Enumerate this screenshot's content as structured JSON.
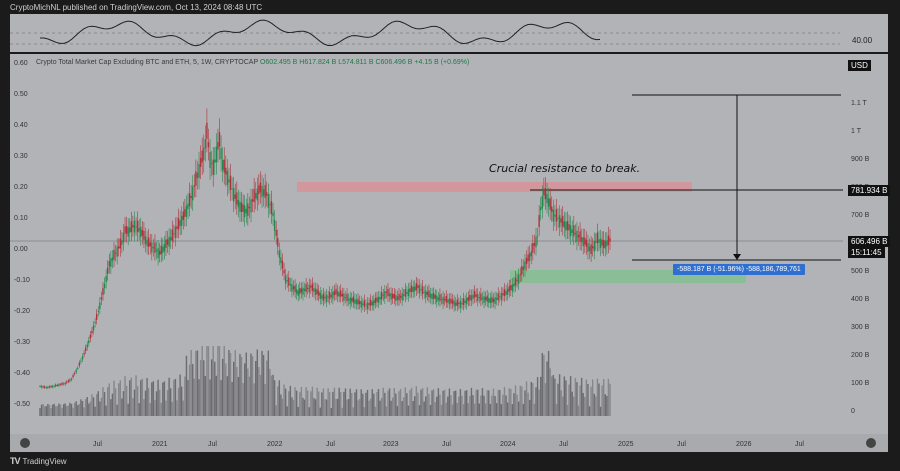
{
  "header": {
    "publisher": "CryptoMichNL published on TradingView.com, Oct 13, 2024 08:48 UTC"
  },
  "legend": {
    "title": "Crypto Total Market Cap Excluding BTC and ETH, 5, 1W, CRYPTOCAP",
    "o": "O602.495 B",
    "h": "H617.824 B",
    "l": "L574.811 B",
    "c": "C606.496 B",
    "change": "+4.15 B (+0.69%)"
  },
  "currency_label": "USD",
  "rsi_label": "40.00",
  "price_tags": {
    "resistance": "781.934 B",
    "current": "606.496 B",
    "countdown": "15:11:45"
  },
  "measure_label": "-588.187 B (-51.96%) -588,186,789,761",
  "annotation": "Crucial resistance to break.",
  "footer": {
    "brand": "TradingView"
  },
  "colors": {
    "up": "#1f8a4c",
    "down": "#b0303a",
    "resistance_zone": "#d98e96",
    "support_zone": "#7fc08f",
    "measure": "#2f6fd0"
  },
  "chart_data": {
    "type": "candlestick",
    "title": "Crypto Total Market Cap Excluding BTC and ETH, 5, 1W, CRYPTOCAP",
    "left_axis_ticks": [
      "0.60",
      "0.50",
      "0.40",
      "0.30",
      "0.20",
      "0.10",
      "0.00",
      "-0.10",
      "-0.20",
      "-0.30",
      "-0.40",
      "-0.50"
    ],
    "right_axis_ticks": [
      "1.1 T",
      "1 T",
      "900 B",
      "800 B",
      "700 B",
      "600 B",
      "500 B",
      "400 B",
      "300 B",
      "200 B",
      "100 B",
      "0"
    ],
    "x_ticks": [
      "Jul",
      "2021",
      "Jul",
      "2022",
      "Jul",
      "2023",
      "Jul",
      "2024",
      "Jul",
      "2025",
      "Jul",
      "2026",
      "Jul"
    ],
    "series": [
      {
        "points": [
          [
            0,
            85
          ],
          [
            4,
            80
          ],
          [
            8,
            84
          ],
          [
            12,
            90
          ],
          [
            16,
            95
          ],
          [
            20,
            110
          ],
          [
            24,
            150
          ],
          [
            28,
            200
          ],
          [
            32,
            260
          ],
          [
            36,
            330
          ],
          [
            40,
            420
          ],
          [
            44,
            520
          ],
          [
            48,
            560
          ],
          [
            52,
            600
          ],
          [
            54,
            640
          ],
          [
            56,
            640
          ],
          [
            60,
            660
          ],
          [
            64,
            640
          ],
          [
            68,
            600
          ],
          [
            72,
            580
          ],
          [
            76,
            560
          ],
          [
            80,
            590
          ],
          [
            84,
            620
          ],
          [
            88,
            660
          ],
          [
            92,
            700
          ],
          [
            96,
            760
          ],
          [
            100,
            840
          ],
          [
            104,
            920
          ],
          [
            106,
            990
          ],
          [
            108,
            900
          ],
          [
            110,
            860
          ],
          [
            112,
            920
          ],
          [
            114,
            960
          ],
          [
            116,
            880
          ],
          [
            120,
            820
          ],
          [
            124,
            760
          ],
          [
            128,
            720
          ],
          [
            132,
            710
          ],
          [
            136,
            760
          ],
          [
            140,
            790
          ],
          [
            144,
            770
          ],
          [
            148,
            700
          ],
          [
            152,
            560
          ],
          [
            156,
            470
          ],
          [
            160,
            440
          ],
          [
            164,
            420
          ],
          [
            168,
            430
          ],
          [
            172,
            440
          ],
          [
            176,
            420
          ],
          [
            180,
            400
          ],
          [
            184,
            405
          ],
          [
            188,
            420
          ],
          [
            192,
            410
          ],
          [
            196,
            395
          ],
          [
            200,
            390
          ],
          [
            204,
            380
          ],
          [
            208,
            375
          ],
          [
            212,
            385
          ],
          [
            216,
            400
          ],
          [
            220,
            420
          ],
          [
            224,
            405
          ],
          [
            228,
            400
          ],
          [
            232,
            415
          ],
          [
            236,
            430
          ],
          [
            240,
            440
          ],
          [
            244,
            420
          ],
          [
            248,
            410
          ],
          [
            252,
            400
          ],
          [
            256,
            395
          ],
          [
            260,
            390
          ],
          [
            264,
            380
          ],
          [
            268,
            380
          ],
          [
            272,
            395
          ],
          [
            276,
            410
          ],
          [
            280,
            400
          ],
          [
            284,
            395
          ],
          [
            288,
            390
          ],
          [
            292,
            405
          ],
          [
            296,
            420
          ],
          [
            300,
            440
          ],
          [
            304,
            470
          ],
          [
            308,
            520
          ],
          [
            312,
            560
          ],
          [
            316,
            620
          ],
          [
            318,
            720
          ],
          [
            320,
            775
          ],
          [
            322,
            760
          ],
          [
            326,
            700
          ],
          [
            330,
            680
          ],
          [
            334,
            660
          ],
          [
            338,
            640
          ],
          [
            342,
            620
          ],
          [
            346,
            600
          ],
          [
            350,
            570
          ],
          [
            354,
            610
          ],
          [
            358,
            590
          ],
          [
            362,
            606
          ]
        ]
      }
    ],
    "annotations": {
      "resistance": {
        "value": "781.934 B"
      },
      "measure": "-588.187 B (-51.96%) -588,186,789,761"
    }
  }
}
